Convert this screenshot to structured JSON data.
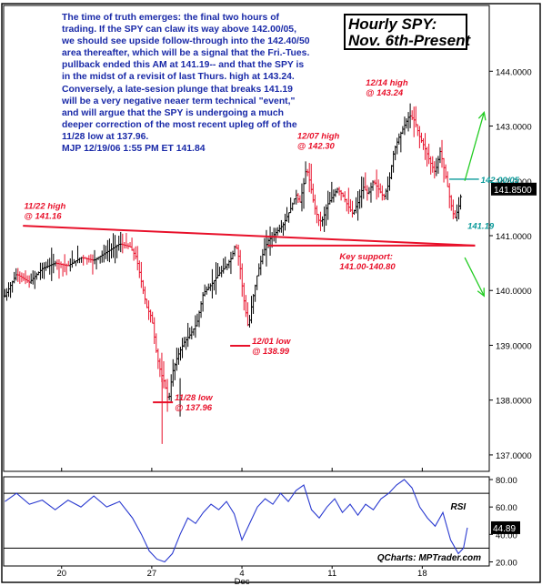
{
  "commentary": "The time of truth emerges: the final two hours of\ntrading. If the SPY can claw its way above 142.00/05,\nwe should see upside follow-through into the 142.40/50\narea thereafter, which will be a signal that the Fri.-Tues.\npullback ended this AM at 141.19-- and that the SPY is\nin the midst of a revisit of last Thurs. high at 143.24.\nConversely, a late-sesion plunge that breaks 141.19\nwill be a very negative neaer term technical \"event,\"\nand will argue that the SPY is undergoing a much\ndeeper correction of the most recent upleg off of the\n11/28 low at 137.96.\nMJP  12/19/06  1:55 PM ET  141.84",
  "colors": {
    "price": "#e8102a",
    "commentary": "#1a2aa8",
    "annotation": "#e8102a",
    "target": "#0a9a9a",
    "arrow": "#22cc22",
    "rsi": "#2a3ad0"
  },
  "chart_data": [
    {
      "type": "line",
      "title": "Hourly SPY: Nov. 6th-Present",
      "title_lines": [
        "Hourly SPY:",
        "Nov. 6th-Present"
      ],
      "ylim": [
        136.7,
        145.2
      ],
      "y_ticks": [
        "137.0000",
        "138.0000",
        "139.0000",
        "140.0000",
        "141.0000",
        "142.0000",
        "143.0000",
        "144.0000"
      ],
      "last_price_label": "141.8500",
      "x_ticks": [
        {
          "x": 20,
          "label": "20"
        },
        {
          "x": 27,
          "label": "27"
        },
        {
          "x": 34,
          "label": "4"
        },
        {
          "x": 41,
          "label": "11"
        },
        {
          "x": 48,
          "label": "18"
        }
      ],
      "month_label": {
        "x": 34,
        "label": "Dec"
      },
      "xlim": [
        15.5,
        53.2
      ],
      "price_path": [
        [
          15.6,
          139.9
        ],
        [
          16.5,
          140.3
        ],
        [
          17.5,
          140.15
        ],
        [
          18.5,
          140.4
        ],
        [
          19.5,
          140.5
        ],
        [
          20.5,
          140.45
        ],
        [
          21.5,
          140.6
        ],
        [
          22.5,
          140.55
        ],
        [
          23.5,
          140.7
        ],
        [
          24.5,
          140.85
        ],
        [
          25.3,
          140.8
        ],
        [
          25.8,
          140.6
        ],
        [
          26.2,
          140.15
        ],
        [
          26.6,
          139.7
        ],
        [
          27.0,
          139.5
        ],
        [
          27.4,
          138.8
        ],
        [
          27.7,
          138.5
        ],
        [
          28.0,
          138.3
        ],
        [
          28.3,
          137.96
        ],
        [
          28.6,
          138.5
        ],
        [
          29.0,
          138.8
        ],
        [
          29.5,
          139.05
        ],
        [
          30.0,
          139.2
        ],
        [
          30.5,
          139.4
        ],
        [
          31.0,
          139.95
        ],
        [
          31.6,
          140.1
        ],
        [
          32.2,
          140.3
        ],
        [
          32.8,
          140.45
        ],
        [
          33.2,
          140.6
        ],
        [
          33.5,
          140.85
        ],
        [
          33.8,
          140.55
        ],
        [
          34.1,
          139.9
        ],
        [
          34.5,
          139.3
        ],
        [
          34.8,
          139.8
        ],
        [
          35.2,
          140.3
        ],
        [
          35.6,
          140.65
        ],
        [
          36.0,
          140.9
        ],
        [
          36.6,
          141.05
        ],
        [
          37.2,
          141.2
        ],
        [
          37.8,
          141.5
        ],
        [
          38.2,
          141.75
        ],
        [
          38.5,
          141.6
        ],
        [
          38.8,
          141.95
        ],
        [
          39.0,
          142.25
        ],
        [
          39.3,
          141.95
        ],
        [
          39.6,
          141.55
        ],
        [
          40.0,
          141.25
        ],
        [
          40.3,
          141.3
        ],
        [
          40.6,
          141.55
        ],
        [
          41.0,
          141.7
        ],
        [
          41.4,
          141.85
        ],
        [
          41.8,
          141.75
        ],
        [
          42.2,
          141.55
        ],
        [
          42.6,
          141.4
        ],
        [
          43.0,
          141.6
        ],
        [
          43.4,
          141.9
        ],
        [
          43.8,
          141.75
        ],
        [
          44.2,
          142.0
        ],
        [
          44.6,
          141.85
        ],
        [
          45.0,
          141.7
        ],
        [
          45.4,
          141.95
        ],
        [
          45.8,
          142.55
        ],
        [
          46.2,
          142.8
        ],
        [
          46.6,
          143.0
        ],
        [
          47.0,
          143.2
        ],
        [
          47.4,
          143.1
        ],
        [
          47.8,
          142.8
        ],
        [
          48.2,
          142.6
        ],
        [
          48.6,
          142.35
        ],
        [
          49.0,
          142.15
        ],
        [
          49.4,
          142.55
        ],
        [
          49.8,
          142.1
        ],
        [
          50.2,
          141.6
        ],
        [
          50.5,
          141.3
        ],
        [
          50.8,
          141.5
        ],
        [
          51.1,
          141.85
        ]
      ],
      "lines": [
        {
          "name": "11/22-resistance-line",
          "from": [
            17.0,
            141.18
          ],
          "to": [
            52.1,
            140.82
          ]
        },
        {
          "name": "key-support-line",
          "from": [
            36.0,
            140.82
          ],
          "to": [
            52.1,
            140.82
          ]
        },
        {
          "name": "target-line",
          "from": [
            50.1,
            142.03
          ],
          "to": [
            52.4,
            142.03
          ]
        }
      ],
      "annotations": [
        {
          "lines": [
            "11/22 high",
            "@ 141.16"
          ],
          "x": 25.0,
          "y": 141.16,
          "style": "italic"
        },
        {
          "lines": [
            "12/07 high",
            "@ 142.30"
          ],
          "x": 39.0,
          "y": 142.3,
          "style": "italic"
        },
        {
          "lines": [
            "12/14 high",
            "@ 143.24"
          ],
          "x": 47.0,
          "y": 143.24,
          "style": "italic"
        },
        {
          "lines": [
            "12/01 low",
            "@ 138.99"
          ],
          "x": 34.5,
          "y": 138.99,
          "style": "italic"
        },
        {
          "lines": [
            "11/28 low",
            "@ 137.96"
          ],
          "x": 28.5,
          "y": 137.96,
          "style": "italic"
        },
        {
          "lines": [
            "Key support:",
            "141.00-140.80"
          ],
          "x": 42.0,
          "y": 140.8,
          "style": "italic"
        }
      ],
      "target_label": "142.00/05",
      "low_label": "141.19",
      "arrows": [
        {
          "name": "up-arrow",
          "from": [
            51.3,
            142.0
          ],
          "to": [
            52.8,
            143.25
          ]
        },
        {
          "name": "down-arrow",
          "from": [
            51.3,
            140.6
          ],
          "to": [
            52.8,
            139.9
          ]
        }
      ]
    },
    {
      "type": "line",
      "series_label": "RSI",
      "ylim": [
        17,
        82
      ],
      "y_ticks": [
        "20.00",
        "40.00",
        "60.00",
        "80.00"
      ],
      "last_value_label": "44.89",
      "reference_lines": [
        30,
        70
      ],
      "rsi_path": [
        [
          15.6,
          64
        ],
        [
          16.5,
          70
        ],
        [
          17.5,
          62
        ],
        [
          18.5,
          65
        ],
        [
          19.5,
          58
        ],
        [
          20.5,
          65
        ],
        [
          21.5,
          60
        ],
        [
          22.5,
          68
        ],
        [
          23.5,
          60
        ],
        [
          24.5,
          64
        ],
        [
          25.5,
          52
        ],
        [
          26.2,
          40
        ],
        [
          26.8,
          28
        ],
        [
          27.4,
          22
        ],
        [
          28.0,
          20
        ],
        [
          28.6,
          26
        ],
        [
          29.2,
          40
        ],
        [
          29.8,
          52
        ],
        [
          30.4,
          48
        ],
        [
          31.0,
          56
        ],
        [
          31.6,
          62
        ],
        [
          32.2,
          58
        ],
        [
          32.8,
          64
        ],
        [
          33.4,
          55
        ],
        [
          34.0,
          36
        ],
        [
          34.6,
          48
        ],
        [
          35.2,
          60
        ],
        [
          35.8,
          66
        ],
        [
          36.4,
          62
        ],
        [
          37.0,
          70
        ],
        [
          37.6,
          64
        ],
        [
          38.2,
          72
        ],
        [
          38.8,
          76
        ],
        [
          39.4,
          58
        ],
        [
          40.0,
          52
        ],
        [
          40.6,
          60
        ],
        [
          41.2,
          66
        ],
        [
          41.8,
          56
        ],
        [
          42.4,
          62
        ],
        [
          43.0,
          54
        ],
        [
          43.6,
          62
        ],
        [
          44.2,
          58
        ],
        [
          44.8,
          66
        ],
        [
          45.4,
          70
        ],
        [
          46.0,
          76
        ],
        [
          46.6,
          80
        ],
        [
          47.2,
          74
        ],
        [
          47.8,
          60
        ],
        [
          48.4,
          52
        ],
        [
          49.0,
          46
        ],
        [
          49.6,
          56
        ],
        [
          50.2,
          36
        ],
        [
          50.8,
          26
        ],
        [
          51.2,
          30
        ],
        [
          51.5,
          44.89
        ]
      ],
      "watermark": "QCharts: MPTrader.com"
    }
  ]
}
